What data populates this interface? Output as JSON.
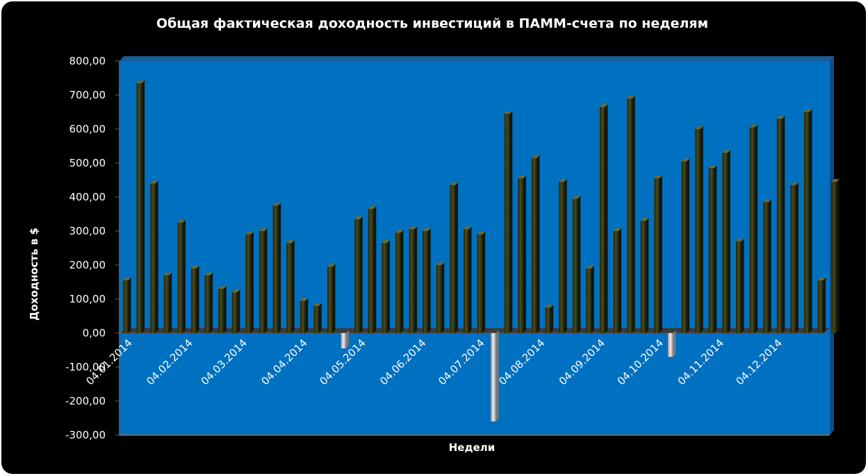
{
  "chart_data": {
    "type": "bar",
    "title": "Общая фактическая доходность  инвестиций в ПАММ-счета по неделям",
    "xlabel": "Недели",
    "ylabel": "Доходность в $",
    "ylim": [
      -300,
      800
    ],
    "yticks": [
      "800,00",
      "700,00",
      "600,00",
      "500,00",
      "400,00",
      "300,00",
      "200,00",
      "100,00",
      "0,00",
      "-100,00",
      "-200,00",
      "-300,00"
    ],
    "ytick_values": [
      800,
      700,
      600,
      500,
      400,
      300,
      200,
      100,
      0,
      -100,
      -200,
      -300
    ],
    "xtick_labels": [
      "04.01.2014",
      "04.02.2014",
      "04.03.2014",
      "04.04.2014",
      "04.05.2014",
      "04.06.2014",
      "04.07.2014",
      "04.08.2014",
      "04.09.2014",
      "04.10.2014",
      "04.11.2014",
      "04.12.2014"
    ],
    "xtick_positions": [
      0,
      4.43,
      8.43,
      12.86,
      17.14,
      21.57,
      25.86,
      30.29,
      34.71,
      39.0,
      43.43,
      47.71
    ],
    "values": [
      155,
      735,
      440,
      170,
      325,
      190,
      170,
      130,
      120,
      290,
      300,
      375,
      265,
      95,
      80,
      195,
      -45,
      335,
      365,
      265,
      295,
      305,
      300,
      200,
      435,
      305,
      290,
      -260,
      645,
      455,
      515,
      75,
      445,
      395,
      190,
      665,
      300,
      690,
      330,
      455,
      -70,
      505,
      600,
      485,
      530,
      270,
      605,
      385,
      630,
      435,
      650,
      155,
      445
    ],
    "grid": false,
    "legend": "none",
    "colors": {
      "background": "#000000",
      "plot_area": "#0070c0",
      "floor": "#3a3a3a",
      "positive_bar": "#3a3a14",
      "negative_bar": "#c0c0c0",
      "text": "#ffffff"
    }
  }
}
